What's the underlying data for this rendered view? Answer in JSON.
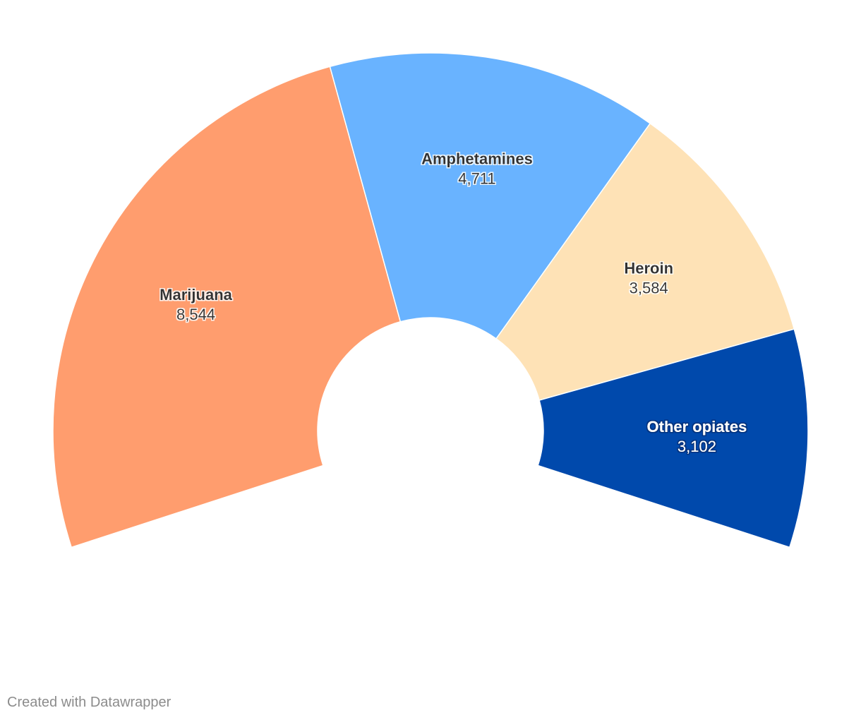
{
  "chart_data": {
    "type": "pie",
    "variant": "semi-donut",
    "categories": [
      "Marijuana",
      "Amphetamines",
      "Heroin",
      "Other opiates"
    ],
    "values": [
      8544,
      4711,
      3584,
      3102
    ],
    "value_labels": [
      "8,544",
      "4,711",
      "3,584",
      "3,102"
    ],
    "colors": [
      "#ff9d6e",
      "#69b3ff",
      "#fee2b6",
      "#0049ac"
    ],
    "label_colors": [
      "#333333",
      "#333333",
      "#333333",
      "#ffffff"
    ],
    "title": "",
    "legend": "none"
  },
  "footer": {
    "credit": "Created with Datawrapper"
  }
}
